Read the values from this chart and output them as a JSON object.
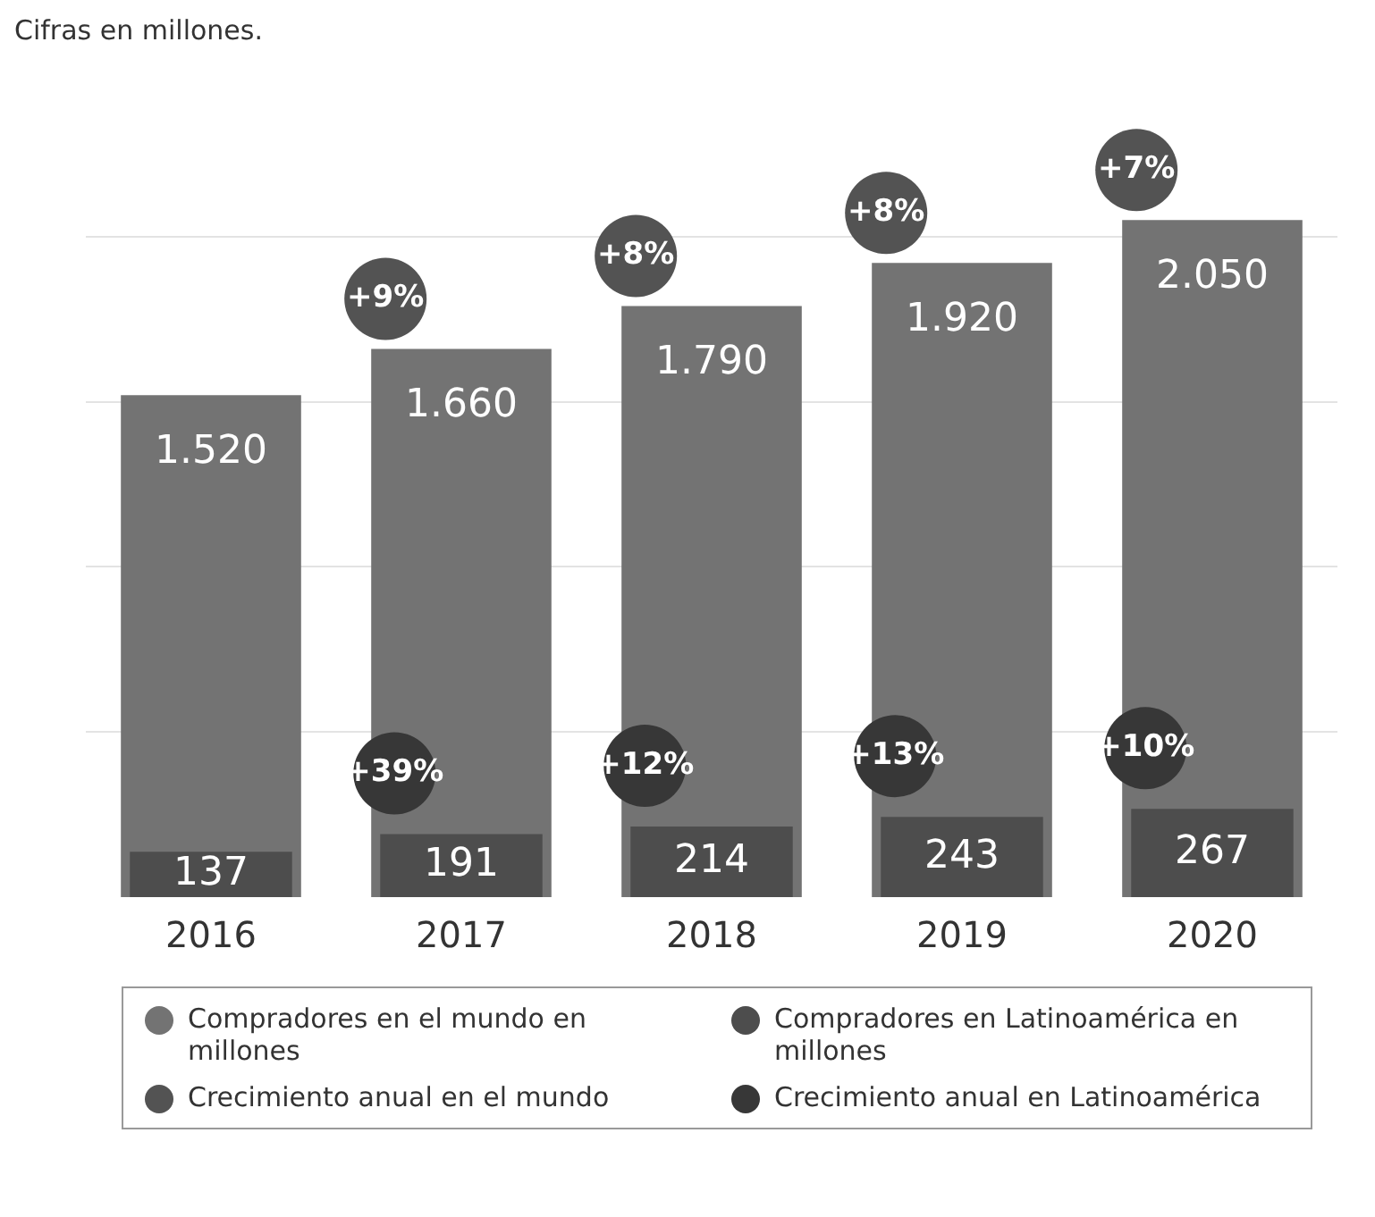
{
  "chart_data": {
    "type": "bar",
    "subtitle": "Cifras en millones.",
    "categories": [
      "2016",
      "2017",
      "2018",
      "2019",
      "2020"
    ],
    "series": [
      {
        "name": "Compradores en el mundo en millones",
        "color": "#737373",
        "values": [
          1520,
          1660,
          1790,
          1920,
          2050
        ],
        "value_labels": [
          "1.520",
          "1.660",
          "1.790",
          "1.920",
          "2.050"
        ]
      },
      {
        "name": "Compradores en Latinoamérica en millones",
        "color": "#4d4d4d",
        "values": [
          137,
          191,
          214,
          243,
          267
        ],
        "value_labels": [
          "137",
          "191",
          "214",
          "243",
          "267"
        ]
      }
    ],
    "yticks": [
      {
        "value": 500,
        "label": null
      },
      {
        "value": 1000,
        "label": null
      },
      {
        "value": 1500,
        "label": null
      },
      {
        "value": 2000,
        "label": null
      }
    ],
    "grid": "y",
    "tick_labels": "x",
    "legend": "bottom",
    "annotations": [
      "+9%",
      "+8%",
      "+8%",
      "+7%",
      "+39%",
      "+12%",
      "+13%",
      "+10%",
      "Crecimiento anual en el mundo",
      "Crecimiento anual en Latinoamérica"
    ]
  }
}
